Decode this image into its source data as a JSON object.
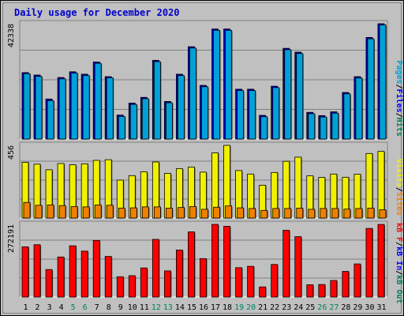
{
  "chart_data": {
    "type": "bar",
    "title": "Daily usage for December 2020",
    "categories": [
      "1",
      "2",
      "3",
      "4",
      "5",
      "6",
      "7",
      "8",
      "9",
      "10",
      "11",
      "12",
      "13",
      "14",
      "15",
      "16",
      "17",
      "18",
      "19",
      "20",
      "21",
      "22",
      "23",
      "24",
      "25",
      "26",
      "27",
      "28",
      "29",
      "30",
      "31"
    ],
    "weekend_categories": [
      "5",
      "6",
      "12",
      "13",
      "19",
      "20",
      "26",
      "27"
    ],
    "colors": {
      "background": "#c0c0c0",
      "plot": "#c0c0c0",
      "title": "#0000cc",
      "hits": "#00805c",
      "files": "#0000ff",
      "pages": "#00a0d8",
      "visits": "#f0f000",
      "sites": "#f08000",
      "kb_in": "#0000ff",
      "kb_out": "#00805c",
      "kb_f": "#ff0000",
      "weekend_tick": "#00805c",
      "weekday_tick": "#000000"
    },
    "panels": [
      {
        "name": "hits-files-pages",
        "max_label": "42338",
        "ymax": 42338,
        "legend": [
          {
            "text": "Pages",
            "color": "#00a0d8"
          },
          {
            "text": "/",
            "color": "#000000"
          },
          {
            "text": "Files",
            "color": "#0000ff"
          },
          {
            "text": "/",
            "color": "#000000"
          },
          {
            "text": "Hits",
            "color": "#00805c"
          }
        ],
        "series": [
          {
            "name": "Hits",
            "color": "#0000cc",
            "values": [
              24400,
              23500,
              14700,
              22600,
              24700,
              23800,
              28300,
              22900,
              8800,
              13200,
              15300,
              28900,
              13800,
              23800,
              33900,
              19700,
              40400,
              40400,
              18300,
              18300,
              8700,
              19400,
              33300,
              31900,
              9800,
              8600,
              10000,
              17100,
              22900,
              37300,
              42338
            ]
          },
          {
            "name": "Files",
            "color": "#00a0d8",
            "values": [
              24000,
              23000,
              14100,
              22100,
              24200,
              23300,
              27800,
              22500,
              8300,
              12700,
              14800,
              28400,
              13300,
              23300,
              33400,
              19200,
              39900,
              39900,
              17800,
              17800,
              8200,
              18900,
              32800,
              31400,
              9300,
              8100,
              9500,
              16600,
              22400,
              36800,
              41900
            ]
          }
        ]
      },
      {
        "name": "visits-sites",
        "max_label": "456",
        "ymax": 456,
        "legend": [
          {
            "text": "Visits",
            "color": "#f0f000"
          },
          {
            "text": "/",
            "color": "#000000"
          },
          {
            "text": "Sites",
            "color": "#f08000"
          }
        ],
        "series": [
          {
            "name": "Visits",
            "color": "#f0f000",
            "values": [
              350,
              338,
              303,
              342,
              334,
              340,
              362,
              366,
              238,
              266,
              290,
              352,
              280,
              310,
              320,
              288,
              409,
              456,
              298,
              276,
              206,
              286,
              356,
              382,
              265,
              255,
              276,
              256,
              275,
              405,
              418
            ]
          },
          {
            "name": "Sites",
            "color": "#f08000",
            "values": [
              98,
              80,
              82,
              78,
              72,
              70,
              82,
              80,
              62,
              64,
              70,
              70,
              62,
              66,
              72,
              55,
              68,
              76,
              64,
              60,
              48,
              60,
              60,
              62,
              55,
              60,
              60,
              56,
              60,
              62,
              52
            ]
          }
        ]
      },
      {
        "name": "kbytes",
        "max_label": "272191",
        "ymax": 272191,
        "legend": [
          {
            "text": "kB F",
            "color": "#ff0000"
          },
          {
            "text": "/",
            "color": "#000000"
          },
          {
            "text": "kB In",
            "color": "#0000ff"
          },
          {
            "text": "/",
            "color": "#000000"
          },
          {
            "text": "kB Out",
            "color": "#00805c"
          }
        ],
        "series": [
          {
            "name": "kB F",
            "color": "#ff0000",
            "values": [
              188000,
              196000,
              103000,
              150000,
              192000,
              172000,
              212000,
              152000,
              76000,
              80000,
              109000,
              216000,
              98000,
              176000,
              244000,
              144000,
              272191,
              265000,
              110000,
              115000,
              38000,
              122000,
              250000,
              226000,
              46000,
              47000,
              62000,
              96000,
              124000,
              257000,
              272000
            ]
          }
        ]
      }
    ]
  }
}
